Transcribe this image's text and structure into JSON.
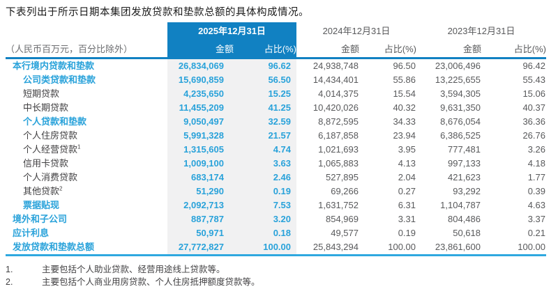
{
  "title": "下表列出于所示日期本集团发放贷款和垫款总额的具体构成情况。",
  "colors": {
    "header_blue": "#1181c2",
    "accent_blue": "#29a2da",
    "band_gray": "#f1f1f2",
    "text_dark": "#414042",
    "text_gray": "#58595b",
    "bottom_line_blue": "#2fa8df"
  },
  "table": {
    "unit_note": "（人民币百万元，百分比除外）",
    "col_groups": [
      {
        "date": "2025年12月31日",
        "amount_label": "金额",
        "pct_label": "占比(%)",
        "highlight": true
      },
      {
        "date": "2024年12月31日",
        "amount_label": "金额",
        "pct_label": "占比(%)",
        "highlight": false
      },
      {
        "date": "2023年12月31日",
        "amount_label": "金额",
        "pct_label": "占比(%)",
        "highlight": false
      }
    ],
    "rows": [
      {
        "label": "本行境内贷款和垫款",
        "sup": "",
        "style": "cat",
        "indent": 0,
        "values": [
          "26,834,069",
          "96.62",
          "24,938,748",
          "96.50",
          "23,006,496",
          "96.42"
        ]
      },
      {
        "label": "公司类贷款和垫款",
        "sup": "",
        "style": "cat",
        "indent": 1,
        "values": [
          "15,690,859",
          "56.50",
          "14,434,401",
          "55.86",
          "13,225,655",
          "55.43"
        ]
      },
      {
        "label": "短期贷款",
        "sup": "",
        "style": "sub",
        "indent": 1,
        "values": [
          "4,235,650",
          "15.25",
          "4,014,375",
          "15.54",
          "3,594,305",
          "15.06"
        ]
      },
      {
        "label": "中长期贷款",
        "sup": "",
        "style": "sub",
        "indent": 1,
        "values": [
          "11,455,209",
          "41.25",
          "10,420,026",
          "40.32",
          "9,631,350",
          "40.37"
        ]
      },
      {
        "label": "个人贷款和垫款",
        "sup": "",
        "style": "cat",
        "indent": 1,
        "values": [
          "9,050,497",
          "32.59",
          "8,872,595",
          "34.33",
          "8,676,054",
          "36.36"
        ]
      },
      {
        "label": "个人住房贷款",
        "sup": "",
        "style": "sub",
        "indent": 1,
        "values": [
          "5,991,328",
          "21.57",
          "6,187,858",
          "23.94",
          "6,386,525",
          "26.76"
        ]
      },
      {
        "label": "个人经营贷款",
        "sup": "1",
        "style": "sub",
        "indent": 1,
        "values": [
          "1,315,605",
          "4.74",
          "1,021,693",
          "3.95",
          "777,481",
          "3.26"
        ]
      },
      {
        "label": "信用卡贷款",
        "sup": "",
        "style": "sub",
        "indent": 1,
        "values": [
          "1,009,100",
          "3.63",
          "1,065,883",
          "4.13",
          "997,133",
          "4.18"
        ]
      },
      {
        "label": "个人消费贷款",
        "sup": "",
        "style": "sub",
        "indent": 1,
        "values": [
          "683,174",
          "2.46",
          "527,895",
          "2.04",
          "421,623",
          "1.77"
        ]
      },
      {
        "label": "其他贷款",
        "sup": "2",
        "style": "sub",
        "indent": 1,
        "values": [
          "51,290",
          "0.19",
          "69,266",
          "0.27",
          "93,292",
          "0.39"
        ]
      },
      {
        "label": "票据贴现",
        "sup": "",
        "style": "cat",
        "indent": 1,
        "values": [
          "2,092,713",
          "7.53",
          "1,631,752",
          "6.31",
          "1,104,787",
          "4.63"
        ]
      },
      {
        "label": "境外和子公司",
        "sup": "",
        "style": "cat",
        "indent": 0,
        "values": [
          "887,787",
          "3.20",
          "854,969",
          "3.31",
          "804,486",
          "3.37"
        ]
      },
      {
        "label": "应计利息",
        "sup": "",
        "style": "cat",
        "indent": 0,
        "values": [
          "50,971",
          "0.18",
          "49,577",
          "0.19",
          "50,618",
          "0.21"
        ]
      },
      {
        "label": "发放贷款和垫款总额",
        "sup": "",
        "style": "cat",
        "indent": 0,
        "values": [
          "27,772,827",
          "100.00",
          "25,843,294",
          "100.00",
          "23,861,600",
          "100.00"
        ]
      }
    ],
    "footnotes": [
      {
        "num": "1.",
        "text": "主要包括个人助业贷款、经营用途线上贷款等。"
      },
      {
        "num": "2.",
        "text": "主要包括个人商业用房贷款、个人住房抵押额度贷款等。"
      }
    ]
  }
}
